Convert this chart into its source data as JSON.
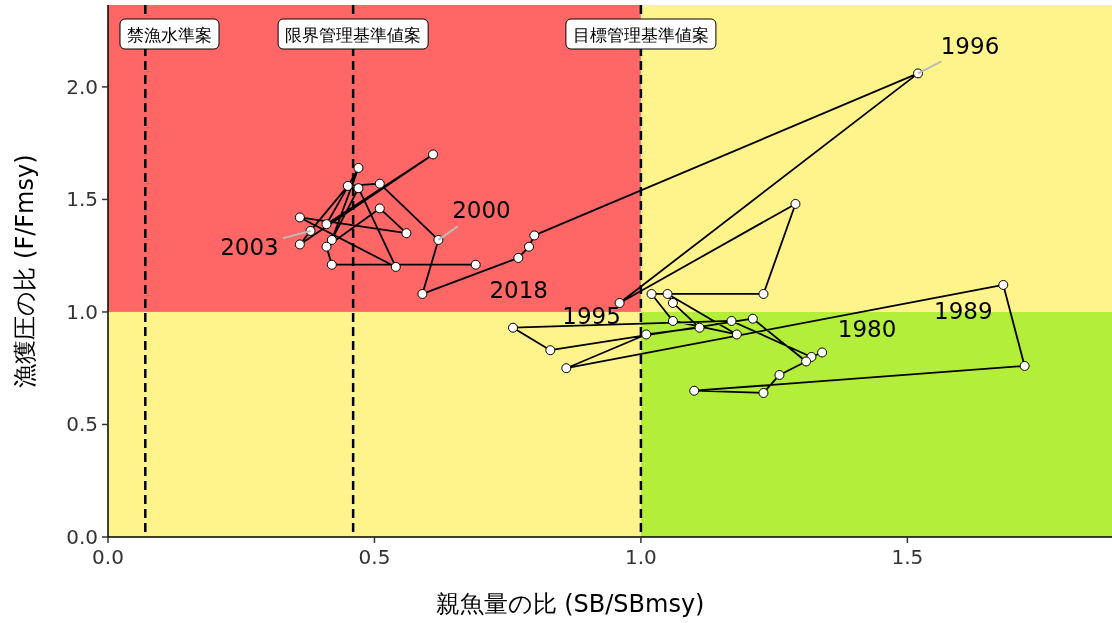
{
  "chart_data": {
    "type": "line",
    "xlabel": "親魚量の比 (SB/SBmsy)",
    "ylabel": "漁獲圧の比 (F/Fmsy)",
    "xlim": [
      0,
      1.884
    ],
    "ylim": [
      0,
      2.364
    ],
    "xticks": [
      {
        "value": 0,
        "label": "0.0"
      },
      {
        "value": 0.5,
        "label": "0.5"
      },
      {
        "value": 1,
        "label": "1.0"
      },
      {
        "value": 1.5,
        "label": "1.5"
      }
    ],
    "yticks": [
      {
        "value": 0,
        "label": "0.0"
      },
      {
        "value": 0.5,
        "label": "0.5"
      },
      {
        "value": 1,
        "label": "1.0"
      },
      {
        "value": 1.5,
        "label": "1.5"
      },
      {
        "value": 2,
        "label": "2.0"
      }
    ],
    "grid": false,
    "marker": "circle",
    "line_style": "solid",
    "bands": [
      {
        "axis": "y",
        "from": 1,
        "to": 2.364,
        "color": "#ff6666"
      },
      {
        "axis": "y",
        "from": 0,
        "to": 1,
        "color": "#fff38c"
      },
      {
        "axis": "y",
        "from": 1,
        "to": 2.364,
        "color": "#fff38c"
      },
      {
        "axis": "y",
        "from": 0,
        "to": 1,
        "color": "#b3ee3a"
      }
    ],
    "ref_lines": [
      {
        "axis": "x",
        "value": 0.07,
        "label": "禁漁水準案",
        "line_style": "dashed"
      },
      {
        "axis": "x",
        "value": 0.46,
        "label": "限界管理基準値案",
        "line_style": "dashed"
      },
      {
        "axis": "x",
        "value": 1,
        "label": "目標管理基準値案",
        "line_style": "dashed"
      }
    ],
    "series": [
      {
        "color": "#000000",
        "x": [
          1.34,
          1.32,
          1.17,
          0.76,
          0.83,
          1.21,
          1.31,
          1.26,
          1.23,
          1.1,
          1.72,
          1.68,
          0.86,
          1.01,
          1.11,
          1.06,
          1.05,
          1.18,
          1.06,
          1.02,
          1.23,
          1.29,
          0.96,
          1.52,
          0.8,
          0.79,
          0.77,
          0.59,
          0.62,
          0.51,
          0.45,
          0.38,
          0.36,
          0.61,
          0.41,
          0.47,
          0.42,
          0.47,
          0.54,
          0.36,
          0.56,
          0.51,
          0.41,
          0.42,
          0.69
        ],
        "values": [
          0.82,
          0.8,
          0.96,
          0.93,
          0.83,
          0.97,
          0.78,
          0.72,
          0.64,
          0.65,
          0.76,
          1.12,
          0.75,
          0.9,
          0.93,
          1.04,
          1.08,
          0.9,
          0.96,
          1.08,
          1.08,
          1.48,
          1.04,
          2.06,
          1.34,
          1.29,
          1.24,
          1.08,
          1.32,
          1.57,
          1.56,
          1.36,
          1.3,
          1.7,
          1.39,
          1.64,
          1.32,
          1.55,
          1.2,
          1.42,
          1.35,
          1.46,
          1.29,
          1.21,
          1.21
        ]
      }
    ],
    "annotations": [
      {
        "text": "1980",
        "x": 1.34,
        "y": 0.82
      },
      {
        "text": "1989",
        "x": 1.68,
        "y": 1.12
      },
      {
        "text": "1995",
        "x": 0.96,
        "y": 1.04
      },
      {
        "text": "1996",
        "x": 1.52,
        "y": 2.06
      },
      {
        "text": "2000",
        "x": 0.62,
        "y": 1.32
      },
      {
        "text": "2003",
        "x": 0.38,
        "y": 1.36
      },
      {
        "text": "2018",
        "x": 0.69,
        "y": 1.21
      }
    ]
  }
}
